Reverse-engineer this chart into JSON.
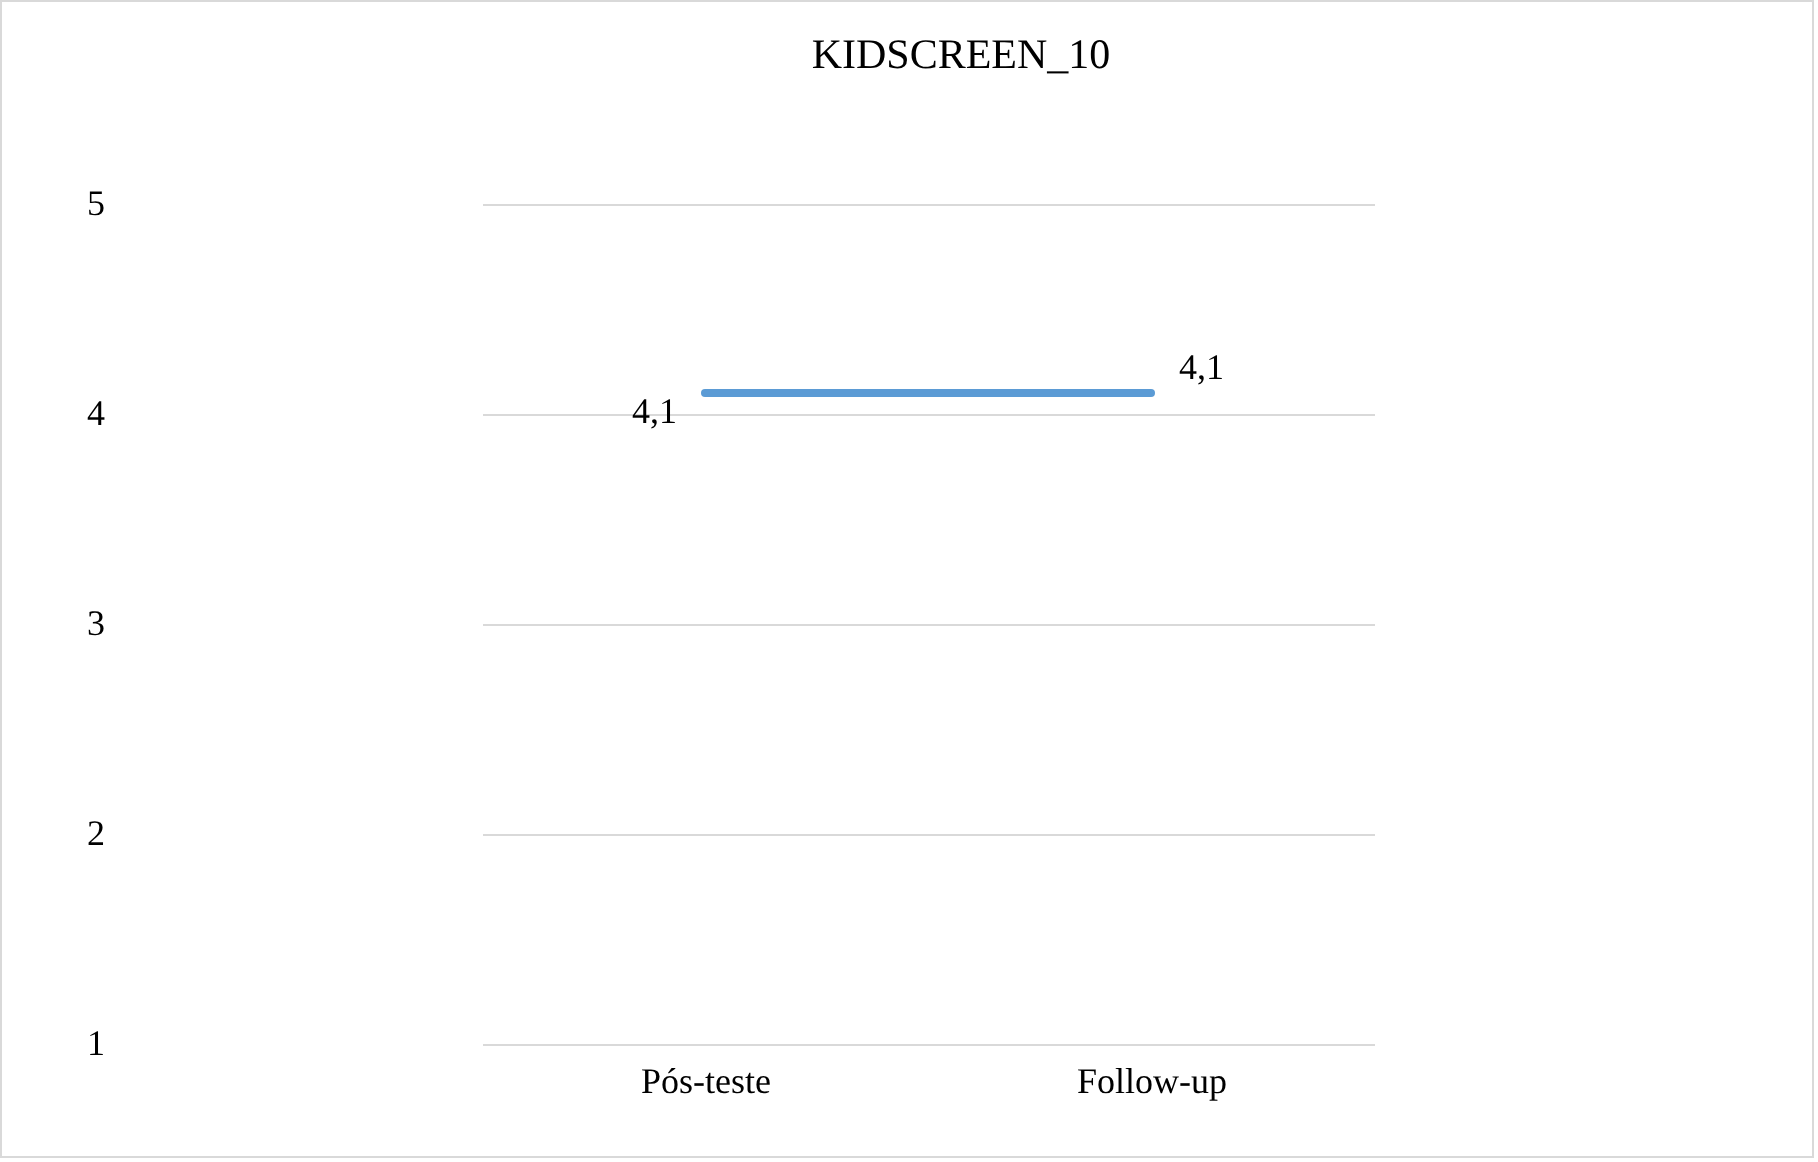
{
  "chart_data": {
    "type": "line",
    "title": "KIDSCREEN_10",
    "categories": [
      "Pós-teste",
      "Follow-up"
    ],
    "series": [
      {
        "color": "#5b9bd5",
        "values": [
          4.1,
          4.1
        ],
        "value_labels": [
          "4,1",
          "4,1"
        ]
      }
    ],
    "ylim": [
      1,
      5
    ],
    "yticks": [
      1,
      2,
      3,
      4,
      5
    ],
    "grid": "y"
  }
}
